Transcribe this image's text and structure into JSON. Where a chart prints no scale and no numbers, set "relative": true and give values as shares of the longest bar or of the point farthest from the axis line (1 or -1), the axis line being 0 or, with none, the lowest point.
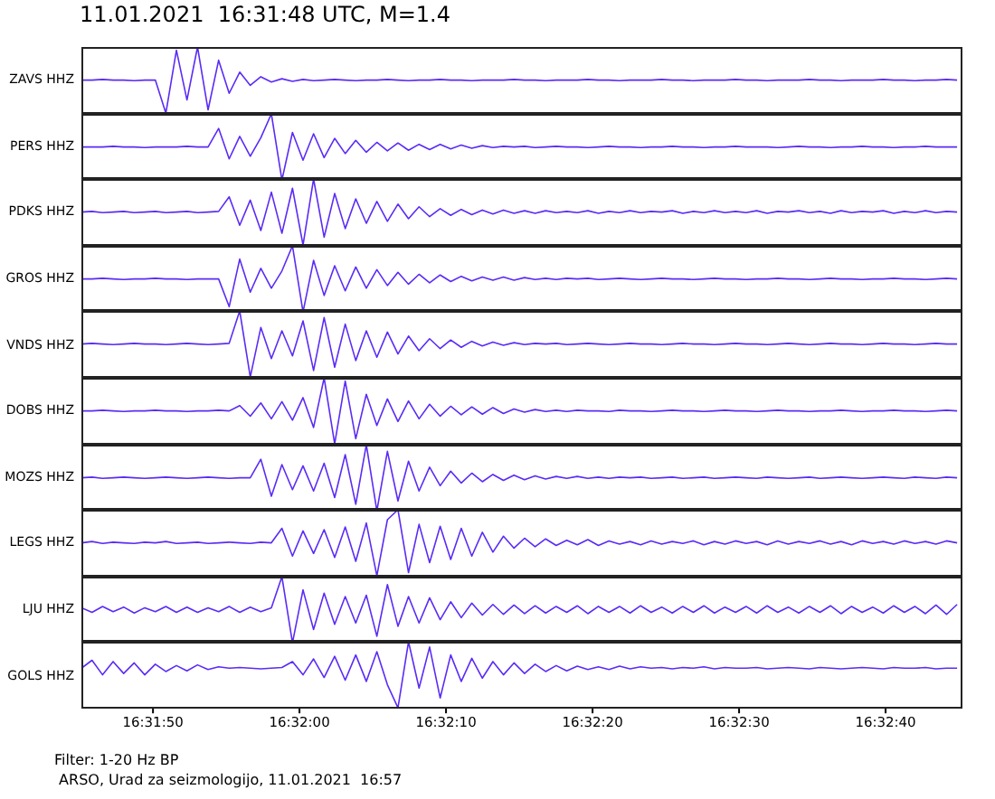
{
  "chart_data": [
    {
      "type": "line",
      "title": "11.01.2021  16:31:48 UTC, M=1.4",
      "ylabel": "ZAVS HHZ",
      "relative": true,
      "color": "#5b2bf5",
      "xlim": [
        16.5292,
        16.5459
      ],
      "tick_labels": false,
      "x": [
        16.5292,
        16.5294,
        16.5296,
        16.5298,
        16.53,
        16.5302,
        16.5304,
        16.5306,
        16.5308,
        16.531,
        16.5312,
        16.5314,
        16.5316,
        16.5318,
        16.532,
        16.5322,
        16.5324,
        16.5326,
        16.5328,
        16.533,
        16.5332,
        16.5334,
        16.5336,
        16.5338,
        16.534,
        16.5342,
        16.5344,
        16.5346,
        16.5348,
        16.535,
        16.5352,
        16.5354,
        16.5356,
        16.5358,
        16.536,
        16.5362,
        16.5364,
        16.5366,
        16.5368,
        16.537,
        16.5372,
        16.5374,
        16.5376,
        16.5378,
        16.538,
        16.5382,
        16.5384,
        16.5386,
        16.5388,
        16.539,
        16.5392,
        16.5394,
        16.5396,
        16.5398,
        16.54,
        16.5402,
        16.5404,
        16.5406,
        16.5408,
        16.541,
        16.5412,
        16.5414,
        16.5416,
        16.5418,
        16.542,
        16.5422,
        16.5424,
        16.5426,
        16.5428,
        16.543,
        16.5432,
        16.5434,
        16.5436,
        16.5438,
        16.544,
        16.5442,
        16.5444,
        16.5446,
        16.5448,
        16.545,
        16.5452,
        16.5454,
        16.5456,
        16.5458
      ],
      "values": [
        0.5,
        0.5,
        0.51,
        0.5,
        0.5,
        0.49,
        0.5,
        0.5,
        0,
        0.95,
        0.2,
        1,
        0.05,
        0.8,
        0.3,
        0.62,
        0.42,
        0.55,
        0.47,
        0.52,
        0.48,
        0.51,
        0.49,
        0.5,
        0.51,
        0.5,
        0.49,
        0.5,
        0.5,
        0.51,
        0.5,
        0.49,
        0.5,
        0.5,
        0.51,
        0.5,
        0.5,
        0.49,
        0.5,
        0.5,
        0.5,
        0.51,
        0.5,
        0.5,
        0.49,
        0.5,
        0.5,
        0.5,
        0.51,
        0.5,
        0.5,
        0.49,
        0.5,
        0.5,
        0.5,
        0.51,
        0.5,
        0.5,
        0.49,
        0.5,
        0.5,
        0.5,
        0.51,
        0.5,
        0.5,
        0.49,
        0.5,
        0.5,
        0.5,
        0.51,
        0.5,
        0.5,
        0.49,
        0.5,
        0.5,
        0.5,
        0.51,
        0.5,
        0.5,
        0.49,
        0.5,
        0.5,
        0.51,
        0.5
      ]
    },
    {
      "type": "line",
      "ylabel": "PERS HHZ",
      "relative": true,
      "color": "#5b2bf5",
      "xlim": [
        16.5292,
        16.5459
      ],
      "tick_labels": false,
      "x": [
        16.5292,
        16.5294,
        16.5296,
        16.5298,
        16.53,
        16.5302,
        16.5304,
        16.5306,
        16.5308,
        16.531,
        16.5312,
        16.5314,
        16.5316,
        16.5318,
        16.532,
        16.5322,
        16.5324,
        16.5326,
        16.5328,
        16.533,
        16.5332,
        16.5334,
        16.5336,
        16.5338,
        16.534,
        16.5342,
        16.5344,
        16.5346,
        16.5348,
        16.535,
        16.5352,
        16.5354,
        16.5356,
        16.5358,
        16.536,
        16.5362,
        16.5364,
        16.5366,
        16.5368,
        16.537,
        16.5372,
        16.5374,
        16.5376,
        16.5378,
        16.538,
        16.5382,
        16.5384,
        16.5386,
        16.5388,
        16.539,
        16.5392,
        16.5394,
        16.5396,
        16.5398,
        16.54,
        16.5402,
        16.5404,
        16.5406,
        16.5408,
        16.541,
        16.5412,
        16.5414,
        16.5416,
        16.5418,
        16.542,
        16.5422,
        16.5424,
        16.5426,
        16.5428,
        16.543,
        16.5432,
        16.5434,
        16.5436,
        16.5438,
        16.544,
        16.5442,
        16.5444,
        16.5446,
        16.5448,
        16.545,
        16.5452,
        16.5454,
        16.5456,
        16.5458
      ],
      "values": [
        0.5,
        0.5,
        0.5,
        0.51,
        0.5,
        0.5,
        0.49,
        0.5,
        0.5,
        0.5,
        0.51,
        0.5,
        0.5,
        0.78,
        0.32,
        0.66,
        0.36,
        0.64,
        1,
        0,
        0.72,
        0.3,
        0.7,
        0.34,
        0.63,
        0.4,
        0.6,
        0.42,
        0.57,
        0.44,
        0.56,
        0.45,
        0.54,
        0.46,
        0.54,
        0.47,
        0.53,
        0.48,
        0.52,
        0.49,
        0.51,
        0.5,
        0.51,
        0.49,
        0.5,
        0.51,
        0.5,
        0.5,
        0.49,
        0.5,
        0.51,
        0.5,
        0.5,
        0.49,
        0.5,
        0.5,
        0.51,
        0.5,
        0.5,
        0.49,
        0.5,
        0.5,
        0.51,
        0.5,
        0.5,
        0.5,
        0.49,
        0.5,
        0.51,
        0.5,
        0.5,
        0.49,
        0.5,
        0.5,
        0.51,
        0.5,
        0.5,
        0.49,
        0.5,
        0.5,
        0.51,
        0.5,
        0.5,
        0.5
      ]
    },
    {
      "type": "line",
      "ylabel": "PDKS HHZ",
      "relative": true,
      "color": "#5b2bf5",
      "xlim": [
        16.5292,
        16.5459
      ],
      "tick_labels": false,
      "x": [
        16.5292,
        16.5294,
        16.5296,
        16.5298,
        16.53,
        16.5302,
        16.5304,
        16.5306,
        16.5308,
        16.531,
        16.5312,
        16.5314,
        16.5316,
        16.5318,
        16.532,
        16.5322,
        16.5324,
        16.5326,
        16.5328,
        16.533,
        16.5332,
        16.5334,
        16.5336,
        16.5338,
        16.534,
        16.5342,
        16.5344,
        16.5346,
        16.5348,
        16.535,
        16.5352,
        16.5354,
        16.5356,
        16.5358,
        16.536,
        16.5362,
        16.5364,
        16.5366,
        16.5368,
        16.537,
        16.5372,
        16.5374,
        16.5376,
        16.5378,
        16.538,
        16.5382,
        16.5384,
        16.5386,
        16.5388,
        16.539,
        16.5392,
        16.5394,
        16.5396,
        16.5398,
        16.54,
        16.5402,
        16.5404,
        16.5406,
        16.5408,
        16.541,
        16.5412,
        16.5414,
        16.5416,
        16.5418,
        16.542,
        16.5422,
        16.5424,
        16.5426,
        16.5428,
        16.543,
        16.5432,
        16.5434,
        16.5436,
        16.5438,
        16.544,
        16.5442,
        16.5444,
        16.5446,
        16.5448,
        16.545,
        16.5452,
        16.5454,
        16.5456,
        16.5458
      ],
      "values": [
        0.5,
        0.51,
        0.49,
        0.5,
        0.51,
        0.49,
        0.5,
        0.51,
        0.49,
        0.5,
        0.51,
        0.49,
        0.5,
        0.51,
        0.73,
        0.3,
        0.68,
        0.22,
        0.8,
        0.18,
        0.86,
        0,
        1,
        0.12,
        0.78,
        0.25,
        0.7,
        0.33,
        0.66,
        0.36,
        0.62,
        0.4,
        0.58,
        0.43,
        0.55,
        0.45,
        0.54,
        0.46,
        0.53,
        0.47,
        0.53,
        0.48,
        0.52,
        0.48,
        0.52,
        0.49,
        0.51,
        0.49,
        0.52,
        0.48,
        0.51,
        0.49,
        0.52,
        0.49,
        0.51,
        0.5,
        0.52,
        0.48,
        0.51,
        0.49,
        0.52,
        0.49,
        0.51,
        0.49,
        0.52,
        0.48,
        0.51,
        0.5,
        0.52,
        0.49,
        0.51,
        0.48,
        0.52,
        0.49,
        0.51,
        0.5,
        0.52,
        0.48,
        0.51,
        0.49,
        0.52,
        0.49,
        0.51,
        0.5
      ]
    },
    {
      "type": "line",
      "ylabel": "GROS HHZ",
      "relative": true,
      "color": "#5b2bf5",
      "xlim": [
        16.5292,
        16.5459
      ],
      "tick_labels": false,
      "x": [
        16.5292,
        16.5294,
        16.5296,
        16.5298,
        16.53,
        16.5302,
        16.5304,
        16.5306,
        16.5308,
        16.531,
        16.5312,
        16.5314,
        16.5316,
        16.5318,
        16.532,
        16.5322,
        16.5324,
        16.5326,
        16.5328,
        16.533,
        16.5332,
        16.5334,
        16.5336,
        16.5338,
        16.534,
        16.5342,
        16.5344,
        16.5346,
        16.5348,
        16.535,
        16.5352,
        16.5354,
        16.5356,
        16.5358,
        16.536,
        16.5362,
        16.5364,
        16.5366,
        16.5368,
        16.537,
        16.5372,
        16.5374,
        16.5376,
        16.5378,
        16.538,
        16.5382,
        16.5384,
        16.5386,
        16.5388,
        16.539,
        16.5392,
        16.5394,
        16.5396,
        16.5398,
        16.54,
        16.5402,
        16.5404,
        16.5406,
        16.5408,
        16.541,
        16.5412,
        16.5414,
        16.5416,
        16.5418,
        16.542,
        16.5422,
        16.5424,
        16.5426,
        16.5428,
        16.543,
        16.5432,
        16.5434,
        16.5436,
        16.5438,
        16.544,
        16.5442,
        16.5444,
        16.5446,
        16.5448,
        16.545,
        16.5452,
        16.5454,
        16.5456,
        16.5458
      ],
      "values": [
        0.5,
        0.5,
        0.51,
        0.5,
        0.49,
        0.5,
        0.5,
        0.51,
        0.5,
        0.5,
        0.49,
        0.5,
        0.5,
        0.5,
        0.08,
        0.8,
        0.3,
        0.66,
        0.36,
        0.62,
        1,
        0,
        0.78,
        0.25,
        0.7,
        0.32,
        0.68,
        0.36,
        0.64,
        0.4,
        0.6,
        0.42,
        0.57,
        0.44,
        0.56,
        0.46,
        0.54,
        0.47,
        0.53,
        0.48,
        0.53,
        0.48,
        0.52,
        0.49,
        0.51,
        0.49,
        0.51,
        0.5,
        0.51,
        0.49,
        0.5,
        0.51,
        0.5,
        0.49,
        0.5,
        0.51,
        0.5,
        0.5,
        0.49,
        0.5,
        0.51,
        0.5,
        0.5,
        0.49,
        0.5,
        0.5,
        0.51,
        0.5,
        0.5,
        0.49,
        0.5,
        0.51,
        0.5,
        0.5,
        0.49,
        0.5,
        0.5,
        0.51,
        0.5,
        0.5,
        0.49,
        0.5,
        0.51,
        0.5
      ]
    },
    {
      "type": "line",
      "ylabel": "VNDS HHZ",
      "relative": true,
      "color": "#5b2bf5",
      "xlim": [
        16.5292,
        16.5459
      ],
      "tick_labels": false,
      "x": [
        16.5292,
        16.5294,
        16.5296,
        16.5298,
        16.53,
        16.5302,
        16.5304,
        16.5306,
        16.5308,
        16.531,
        16.5312,
        16.5314,
        16.5316,
        16.5318,
        16.532,
        16.5322,
        16.5324,
        16.5326,
        16.5328,
        16.533,
        16.5332,
        16.5334,
        16.5336,
        16.5338,
        16.534,
        16.5342,
        16.5344,
        16.5346,
        16.5348,
        16.535,
        16.5352,
        16.5354,
        16.5356,
        16.5358,
        16.536,
        16.5362,
        16.5364,
        16.5366,
        16.5368,
        16.537,
        16.5372,
        16.5374,
        16.5376,
        16.5378,
        16.538,
        16.5382,
        16.5384,
        16.5386,
        16.5388,
        16.539,
        16.5392,
        16.5394,
        16.5396,
        16.5398,
        16.54,
        16.5402,
        16.5404,
        16.5406,
        16.5408,
        16.541,
        16.5412,
        16.5414,
        16.5416,
        16.5418,
        16.542,
        16.5422,
        16.5424,
        16.5426,
        16.5428,
        16.543,
        16.5432,
        16.5434,
        16.5436,
        16.5438,
        16.544,
        16.5442,
        16.5444,
        16.5446,
        16.5448,
        16.545,
        16.5452,
        16.5454,
        16.5456,
        16.5458
      ],
      "values": [
        0.5,
        0.51,
        0.5,
        0.49,
        0.5,
        0.51,
        0.5,
        0.5,
        0.49,
        0.5,
        0.51,
        0.5,
        0.49,
        0.5,
        0.51,
        1,
        0,
        0.75,
        0.28,
        0.7,
        0.32,
        0.85,
        0.1,
        0.9,
        0.15,
        0.8,
        0.25,
        0.7,
        0.3,
        0.68,
        0.35,
        0.62,
        0.4,
        0.58,
        0.43,
        0.56,
        0.45,
        0.54,
        0.47,
        0.53,
        0.48,
        0.52,
        0.49,
        0.51,
        0.5,
        0.51,
        0.49,
        0.5,
        0.51,
        0.5,
        0.49,
        0.5,
        0.51,
        0.5,
        0.5,
        0.49,
        0.5,
        0.51,
        0.5,
        0.5,
        0.49,
        0.5,
        0.51,
        0.5,
        0.5,
        0.49,
        0.5,
        0.51,
        0.5,
        0.49,
        0.5,
        0.51,
        0.5,
        0.5,
        0.49,
        0.5,
        0.51,
        0.5,
        0.5,
        0.49,
        0.5,
        0.51,
        0.5,
        0.5
      ]
    },
    {
      "type": "line",
      "ylabel": "DOBS HHZ",
      "relative": true,
      "color": "#5b2bf5",
      "xlim": [
        16.5292,
        16.5459
      ],
      "tick_labels": false,
      "x": [
        16.5292,
        16.5294,
        16.5296,
        16.5298,
        16.53,
        16.5302,
        16.5304,
        16.5306,
        16.5308,
        16.531,
        16.5312,
        16.5314,
        16.5316,
        16.5318,
        16.532,
        16.5322,
        16.5324,
        16.5326,
        16.5328,
        16.533,
        16.5332,
        16.5334,
        16.5336,
        16.5338,
        16.534,
        16.5342,
        16.5344,
        16.5346,
        16.5348,
        16.535,
        16.5352,
        16.5354,
        16.5356,
        16.5358,
        16.536,
        16.5362,
        16.5364,
        16.5366,
        16.5368,
        16.537,
        16.5372,
        16.5374,
        16.5376,
        16.5378,
        16.538,
        16.5382,
        16.5384,
        16.5386,
        16.5388,
        16.539,
        16.5392,
        16.5394,
        16.5396,
        16.5398,
        16.54,
        16.5402,
        16.5404,
        16.5406,
        16.5408,
        16.541,
        16.5412,
        16.5414,
        16.5416,
        16.5418,
        16.542,
        16.5422,
        16.5424,
        16.5426,
        16.5428,
        16.543,
        16.5432,
        16.5434,
        16.5436,
        16.5438,
        16.544,
        16.5442,
        16.5444,
        16.5446,
        16.5448,
        16.545,
        16.5452,
        16.5454,
        16.5456,
        16.5458
      ],
      "values": [
        0.5,
        0.5,
        0.51,
        0.5,
        0.49,
        0.5,
        0.5,
        0.51,
        0.5,
        0.5,
        0.49,
        0.5,
        0.5,
        0.51,
        0.5,
        0.58,
        0.42,
        0.62,
        0.38,
        0.64,
        0.36,
        0.7,
        0.25,
        1,
        0,
        0.95,
        0.08,
        0.75,
        0.28,
        0.68,
        0.34,
        0.65,
        0.38,
        0.6,
        0.42,
        0.57,
        0.44,
        0.56,
        0.45,
        0.55,
        0.46,
        0.53,
        0.48,
        0.52,
        0.49,
        0.51,
        0.49,
        0.51,
        0.5,
        0.5,
        0.49,
        0.51,
        0.5,
        0.5,
        0.49,
        0.5,
        0.51,
        0.5,
        0.5,
        0.49,
        0.5,
        0.51,
        0.5,
        0.5,
        0.49,
        0.5,
        0.51,
        0.5,
        0.5,
        0.49,
        0.5,
        0.5,
        0.51,
        0.5,
        0.49,
        0.5,
        0.5,
        0.51,
        0.5,
        0.5,
        0.49,
        0.5,
        0.51,
        0.5
      ]
    },
    {
      "type": "line",
      "ylabel": "MOZS HHZ",
      "relative": true,
      "color": "#5b2bf5",
      "xlim": [
        16.5292,
        16.5459
      ],
      "tick_labels": false,
      "x": [
        16.5292,
        16.5294,
        16.5296,
        16.5298,
        16.53,
        16.5302,
        16.5304,
        16.5306,
        16.5308,
        16.531,
        16.5312,
        16.5314,
        16.5316,
        16.5318,
        16.532,
        16.5322,
        16.5324,
        16.5326,
        16.5328,
        16.533,
        16.5332,
        16.5334,
        16.5336,
        16.5338,
        16.534,
        16.5342,
        16.5344,
        16.5346,
        16.5348,
        16.535,
        16.5352,
        16.5354,
        16.5356,
        16.5358,
        16.536,
        16.5362,
        16.5364,
        16.5366,
        16.5368,
        16.537,
        16.5372,
        16.5374,
        16.5376,
        16.5378,
        16.538,
        16.5382,
        16.5384,
        16.5386,
        16.5388,
        16.539,
        16.5392,
        16.5394,
        16.5396,
        16.5398,
        16.54,
        16.5402,
        16.5404,
        16.5406,
        16.5408,
        16.541,
        16.5412,
        16.5414,
        16.5416,
        16.5418,
        16.542,
        16.5422,
        16.5424,
        16.5426,
        16.5428,
        16.543,
        16.5432,
        16.5434,
        16.5436,
        16.5438,
        16.544,
        16.5442,
        16.5444,
        16.5446,
        16.5448,
        16.545,
        16.5452,
        16.5454,
        16.5456,
        16.5458
      ],
      "values": [
        0.5,
        0.51,
        0.49,
        0.5,
        0.51,
        0.5,
        0.49,
        0.5,
        0.51,
        0.5,
        0.49,
        0.5,
        0.51,
        0.5,
        0.49,
        0.5,
        0.5,
        0.78,
        0.22,
        0.7,
        0.32,
        0.68,
        0.3,
        0.72,
        0.2,
        0.85,
        0.1,
        1,
        0,
        0.9,
        0.15,
        0.75,
        0.3,
        0.66,
        0.38,
        0.6,
        0.42,
        0.57,
        0.44,
        0.55,
        0.46,
        0.54,
        0.47,
        0.53,
        0.48,
        0.52,
        0.49,
        0.52,
        0.49,
        0.51,
        0.49,
        0.51,
        0.5,
        0.51,
        0.49,
        0.5,
        0.51,
        0.49,
        0.5,
        0.51,
        0.49,
        0.5,
        0.51,
        0.5,
        0.49,
        0.51,
        0.5,
        0.49,
        0.5,
        0.51,
        0.49,
        0.5,
        0.51,
        0.5,
        0.49,
        0.5,
        0.51,
        0.5,
        0.49,
        0.51,
        0.5,
        0.49,
        0.51,
        0.5
      ]
    },
    {
      "type": "line",
      "ylabel": "LEGS HHZ",
      "relative": true,
      "color": "#5b2bf5",
      "xlim": [
        16.5292,
        16.5459
      ],
      "tick_labels": false,
      "x": [
        16.5292,
        16.5294,
        16.5296,
        16.5298,
        16.53,
        16.5302,
        16.5304,
        16.5306,
        16.5308,
        16.531,
        16.5312,
        16.5314,
        16.5316,
        16.5318,
        16.532,
        16.5322,
        16.5324,
        16.5326,
        16.5328,
        16.533,
        16.5332,
        16.5334,
        16.5336,
        16.5338,
        16.534,
        16.5342,
        16.5344,
        16.5346,
        16.5348,
        16.535,
        16.5352,
        16.5354,
        16.5356,
        16.5358,
        16.536,
        16.5362,
        16.5364,
        16.5366,
        16.5368,
        16.537,
        16.5372,
        16.5374,
        16.5376,
        16.5378,
        16.538,
        16.5382,
        16.5384,
        16.5386,
        16.5388,
        16.539,
        16.5392,
        16.5394,
        16.5396,
        16.5398,
        16.54,
        16.5402,
        16.5404,
        16.5406,
        16.5408,
        16.541,
        16.5412,
        16.5414,
        16.5416,
        16.5418,
        16.542,
        16.5422,
        16.5424,
        16.5426,
        16.5428,
        16.543,
        16.5432,
        16.5434,
        16.5436,
        16.5438,
        16.544,
        16.5442,
        16.5444,
        16.5446,
        16.5448,
        16.545,
        16.5452,
        16.5454,
        16.5456,
        16.5458
      ],
      "values": [
        0.5,
        0.52,
        0.49,
        0.51,
        0.5,
        0.49,
        0.51,
        0.5,
        0.52,
        0.49,
        0.5,
        0.51,
        0.49,
        0.5,
        0.51,
        0.5,
        0.49,
        0.51,
        0.5,
        0.72,
        0.3,
        0.68,
        0.34,
        0.7,
        0.28,
        0.74,
        0.22,
        0.8,
        0,
        0.85,
        1,
        0.05,
        0.78,
        0.2,
        0.75,
        0.25,
        0.72,
        0.3,
        0.66,
        0.36,
        0.6,
        0.42,
        0.57,
        0.44,
        0.56,
        0.46,
        0.54,
        0.47,
        0.55,
        0.46,
        0.53,
        0.48,
        0.52,
        0.47,
        0.53,
        0.48,
        0.52,
        0.49,
        0.53,
        0.47,
        0.52,
        0.48,
        0.53,
        0.49,
        0.52,
        0.47,
        0.53,
        0.48,
        0.52,
        0.49,
        0.53,
        0.48,
        0.52,
        0.47,
        0.53,
        0.49,
        0.52,
        0.48,
        0.53,
        0.49,
        0.52,
        0.48,
        0.53,
        0.5
      ]
    },
    {
      "type": "line",
      "ylabel": "LJU HHZ",
      "relative": true,
      "color": "#5b2bf5",
      "xlim": [
        16.5292,
        16.5459
      ],
      "tick_labels": false,
      "x": [
        16.5292,
        16.5294,
        16.5296,
        16.5298,
        16.53,
        16.5302,
        16.5304,
        16.5306,
        16.5308,
        16.531,
        16.5312,
        16.5314,
        16.5316,
        16.5318,
        16.532,
        16.5322,
        16.5324,
        16.5326,
        16.5328,
        16.533,
        16.5332,
        16.5334,
        16.5336,
        16.5338,
        16.534,
        16.5342,
        16.5344,
        16.5346,
        16.5348,
        16.535,
        16.5352,
        16.5354,
        16.5356,
        16.5358,
        16.536,
        16.5362,
        16.5364,
        16.5366,
        16.5368,
        16.537,
        16.5372,
        16.5374,
        16.5376,
        16.5378,
        16.538,
        16.5382,
        16.5384,
        16.5386,
        16.5388,
        16.539,
        16.5392,
        16.5394,
        16.5396,
        16.5398,
        16.54,
        16.5402,
        16.5404,
        16.5406,
        16.5408,
        16.541,
        16.5412,
        16.5414,
        16.5416,
        16.5418,
        16.542,
        16.5422,
        16.5424,
        16.5426,
        16.5428,
        16.543,
        16.5432,
        16.5434,
        16.5436,
        16.5438,
        16.544,
        16.5442,
        16.5444,
        16.5446,
        16.5448,
        16.545,
        16.5452,
        16.5454,
        16.5456,
        16.5458
      ],
      "values": [
        0.53,
        0.46,
        0.55,
        0.47,
        0.54,
        0.45,
        0.53,
        0.47,
        0.55,
        0.46,
        0.54,
        0.46,
        0.53,
        0.47,
        0.55,
        0.46,
        0.54,
        0.47,
        0.53,
        1,
        0,
        0.8,
        0.2,
        0.75,
        0.28,
        0.7,
        0.3,
        0.72,
        0.1,
        0.88,
        0.25,
        0.7,
        0.3,
        0.68,
        0.35,
        0.62,
        0.38,
        0.6,
        0.42,
        0.58,
        0.43,
        0.57,
        0.44,
        0.56,
        0.45,
        0.55,
        0.46,
        0.56,
        0.44,
        0.55,
        0.46,
        0.55,
        0.45,
        0.56,
        0.46,
        0.54,
        0.45,
        0.55,
        0.46,
        0.56,
        0.45,
        0.54,
        0.46,
        0.55,
        0.45,
        0.56,
        0.46,
        0.54,
        0.45,
        0.55,
        0.46,
        0.56,
        0.44,
        0.55,
        0.46,
        0.54,
        0.45,
        0.56,
        0.46,
        0.55,
        0.44,
        0.57,
        0.43,
        0.58
      ]
    },
    {
      "type": "line",
      "ylabel": "GOLS HHZ",
      "relative": true,
      "color": "#5b2bf5",
      "xlim": [
        16.5292,
        16.5459
      ],
      "tick_labels": "x",
      "xticks": [
        {
          "value": 16.530556,
          "label": "16:31:50"
        },
        {
          "value": 16.533333,
          "label": "16:32:00"
        },
        {
          "value": 16.536111,
          "label": "16:32:10"
        },
        {
          "value": 16.538889,
          "label": "16:32:20"
        },
        {
          "value": 16.541667,
          "label": "16:32:30"
        },
        {
          "value": 16.544444,
          "label": "16:32:40"
        }
      ],
      "annotations": [
        "Filter: 1-20 Hz BP",
        " ARSO, Urad za seizmologijo, 11.01.2021  16:57"
      ],
      "x": [
        16.5292,
        16.5294,
        16.5296,
        16.5298,
        16.53,
        16.5302,
        16.5304,
        16.5306,
        16.5308,
        16.531,
        16.5312,
        16.5314,
        16.5316,
        16.5318,
        16.532,
        16.5322,
        16.5324,
        16.5326,
        16.5328,
        16.533,
        16.5332,
        16.5334,
        16.5336,
        16.5338,
        16.534,
        16.5342,
        16.5344,
        16.5346,
        16.5348,
        16.535,
        16.5352,
        16.5354,
        16.5356,
        16.5358,
        16.536,
        16.5362,
        16.5364,
        16.5366,
        16.5368,
        16.537,
        16.5372,
        16.5374,
        16.5376,
        16.5378,
        16.538,
        16.5382,
        16.5384,
        16.5386,
        16.5388,
        16.539,
        16.5392,
        16.5394,
        16.5396,
        16.5398,
        16.54,
        16.5402,
        16.5404,
        16.5406,
        16.5408,
        16.541,
        16.5412,
        16.5414,
        16.5416,
        16.5418,
        16.542,
        16.5422,
        16.5424,
        16.5426,
        16.5428,
        16.543,
        16.5432,
        16.5434,
        16.5436,
        16.5438,
        16.544,
        16.5442,
        16.5444,
        16.5446,
        16.5448,
        16.545,
        16.5452,
        16.5454,
        16.5456,
        16.5458
      ],
      "values": [
        0.6,
        0.72,
        0.5,
        0.7,
        0.52,
        0.68,
        0.5,
        0.66,
        0.55,
        0.64,
        0.56,
        0.65,
        0.58,
        0.62,
        0.6,
        0.61,
        0.6,
        0.59,
        0.6,
        0.61,
        0.7,
        0.5,
        0.74,
        0.46,
        0.78,
        0.42,
        0.8,
        0.4,
        0.85,
        0.35,
        0,
        1,
        0.3,
        0.92,
        0.15,
        0.8,
        0.4,
        0.75,
        0.45,
        0.7,
        0.5,
        0.68,
        0.52,
        0.66,
        0.55,
        0.64,
        0.56,
        0.63,
        0.58,
        0.62,
        0.58,
        0.63,
        0.59,
        0.62,
        0.6,
        0.61,
        0.59,
        0.61,
        0.6,
        0.62,
        0.59,
        0.61,
        0.6,
        0.6,
        0.61,
        0.59,
        0.6,
        0.61,
        0.6,
        0.59,
        0.61,
        0.6,
        0.59,
        0.6,
        0.61,
        0.6,
        0.59,
        0.61,
        0.6,
        0.6,
        0.61,
        0.59,
        0.6,
        0.6
      ]
    }
  ]
}
